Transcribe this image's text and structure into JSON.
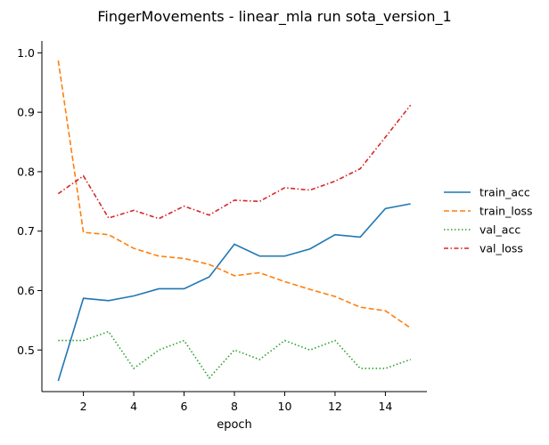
{
  "chart_data": {
    "type": "line",
    "title": "FingerMovements - linear_mla run sota_version_1",
    "xlabel": "epoch",
    "ylabel": "",
    "x": [
      1,
      2,
      3,
      4,
      5,
      6,
      7,
      8,
      9,
      10,
      11,
      12,
      13,
      14,
      15
    ],
    "xlim": [
      0.35,
      15.65
    ],
    "ylim": [
      0.43,
      1.02
    ],
    "xticks": [
      2,
      4,
      6,
      8,
      10,
      12,
      14
    ],
    "yticks": [
      0.5,
      0.6,
      0.7,
      0.8,
      0.9,
      1.0
    ],
    "xtick_labels": [
      "2",
      "4",
      "6",
      "8",
      "10",
      "12",
      "14"
    ],
    "ytick_labels": [
      "0.5",
      "0.6",
      "0.7",
      "0.8",
      "0.9",
      "1.0"
    ],
    "grid": false,
    "legend_position": "right",
    "series": [
      {
        "name": "train_acc",
        "color": "#1f77b4",
        "style": "solid",
        "values": [
          0.448,
          0.587,
          0.583,
          0.591,
          0.603,
          0.603,
          0.623,
          0.678,
          0.658,
          0.658,
          0.67,
          0.694,
          0.69,
          0.738,
          0.746
        ]
      },
      {
        "name": "train_loss",
        "color": "#ff7f0e",
        "style": "dashed",
        "values": [
          0.987,
          0.698,
          0.694,
          0.671,
          0.658,
          0.654,
          0.644,
          0.625,
          0.63,
          0.615,
          0.602,
          0.59,
          0.572,
          0.566,
          0.537
        ]
      },
      {
        "name": "val_acc",
        "color": "#2ca02c",
        "style": "dotted",
        "values": [
          0.516,
          0.516,
          0.531,
          0.469,
          0.5,
          0.516,
          0.453,
          0.5,
          0.484,
          0.516,
          0.5,
          0.516,
          0.469,
          0.469,
          0.484
        ]
      },
      {
        "name": "val_loss",
        "color": "#d62728",
        "style": "dashdot",
        "values": [
          0.763,
          0.793,
          0.722,
          0.735,
          0.721,
          0.742,
          0.727,
          0.752,
          0.75,
          0.773,
          0.769,
          0.784,
          0.805,
          0.858,
          0.912
        ]
      }
    ]
  }
}
